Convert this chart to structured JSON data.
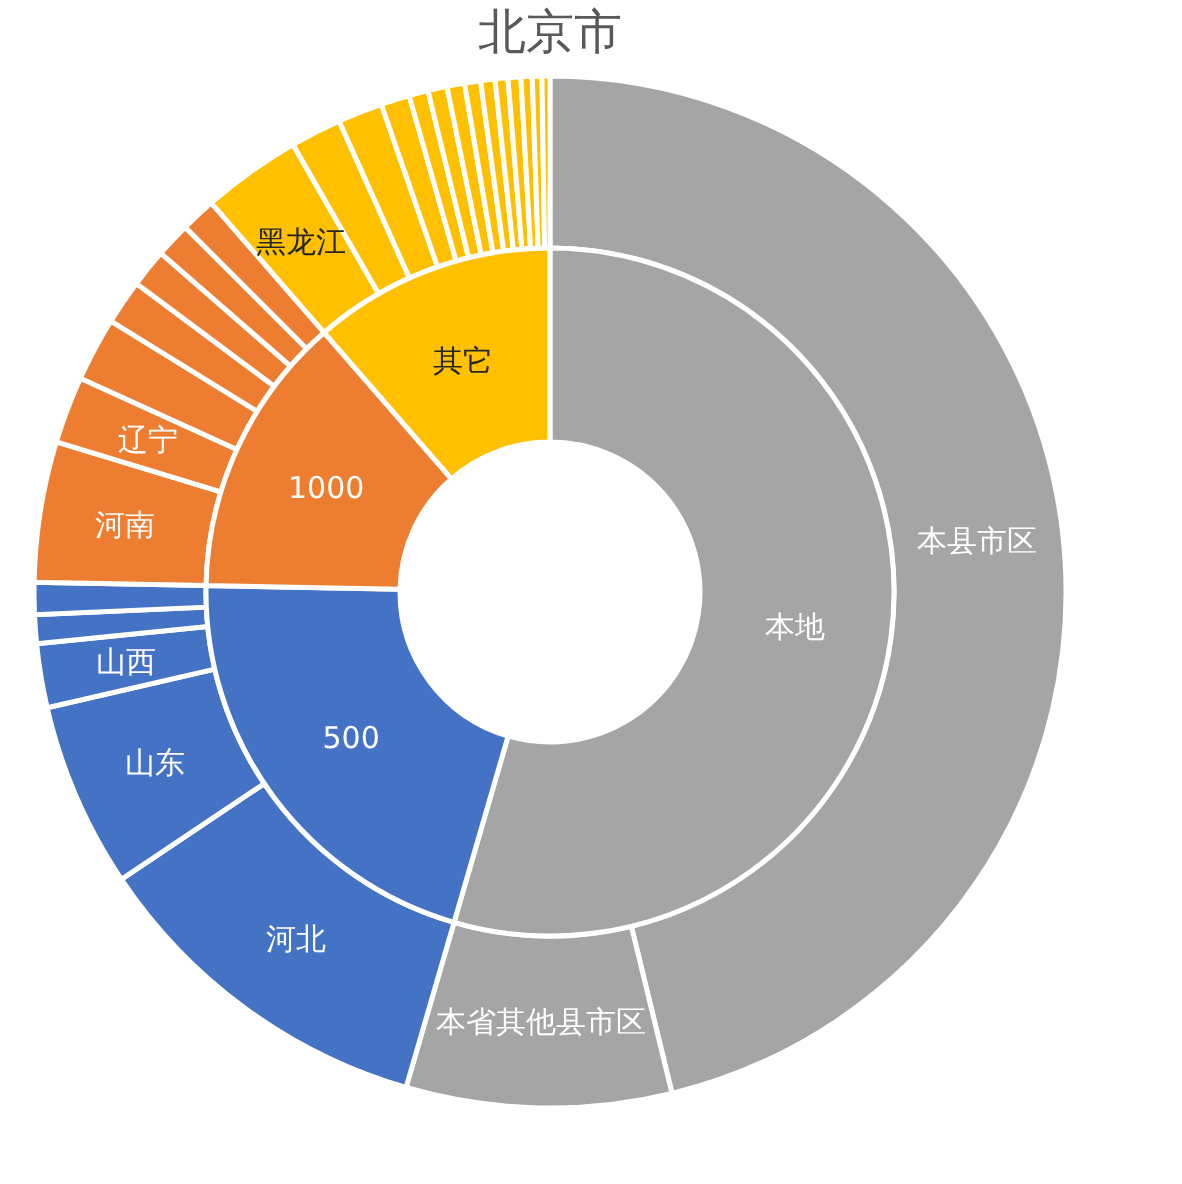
{
  "chart_data": {
    "type": "donut",
    "title": "北京市",
    "legend": false,
    "categories": [
      "本县市区",
      "本省其他县市区",
      "河北",
      "山东",
      "山西",
      null,
      null,
      "河南",
      "辽宁",
      null,
      null,
      null,
      null,
      null,
      "黑龙江",
      null,
      null,
      null,
      null,
      null,
      null,
      null,
      null,
      null,
      null,
      null,
      null,
      null
    ],
    "annotations": [
      "本地",
      "500",
      "1000",
      "其它"
    ],
    "series": [
      {
        "values": [
          46.2,
          8.3,
          11.1,
          5.8,
          2.0,
          0.9,
          1.0,
          4.4,
          2.1,
          2.0,
          1.4,
          1.2,
          1.1,
          1.1,
          3.1,
          1.6,
          1.4,
          0.9,
          0.6,
          0.6,
          0.55,
          0.5,
          0.45,
          0.4,
          0.4,
          0.35,
          0.3,
          0.25
        ],
        "colors": [
          "#a5a5a5",
          "#a5a5a5",
          "#4472c4",
          "#4472c4",
          "#4472c4",
          "#4472c4",
          "#4472c4",
          "#ed7d31",
          "#ed7d31",
          "#ed7d31",
          "#ed7d31",
          "#ed7d31",
          "#ed7d31",
          "#ed7d31",
          "#ffc000",
          "#ffc000",
          "#ffc000",
          "#ffc000",
          "#ffc000",
          "#ffc000",
          "#ffc000",
          "#ffc000",
          "#ffc000",
          "#ffc000",
          "#ffc000",
          "#ffc000",
          "#ffc000",
          "#ffc000"
        ]
      },
      {
        "values": [
          54.5,
          null,
          20.8,
          null,
          null,
          null,
          null,
          13.3,
          null,
          null,
          null,
          null,
          null,
          null,
          11.4,
          null,
          null,
          null,
          null,
          null,
          null,
          null,
          null,
          null,
          null,
          null,
          null,
          null
        ],
        "colors": [
          "#a5a5a5",
          "#a5a5a5",
          "#4472c4",
          "#4472c4",
          "#4472c4",
          "#4472c4",
          "#4472c4",
          "#ed7d31",
          "#ed7d31",
          "#ed7d31",
          "#ed7d31",
          "#ed7d31",
          "#ed7d31",
          "#ed7d31",
          "#ffc000",
          "#ffc000",
          "#ffc000",
          "#ffc000",
          "#ffc000",
          "#ffc000",
          "#ffc000",
          "#ffc000",
          "#ffc000",
          "#ffc000",
          "#ffc000",
          "#ffc000",
          "#ffc000",
          "#ffc000"
        ]
      }
    ]
  }
}
